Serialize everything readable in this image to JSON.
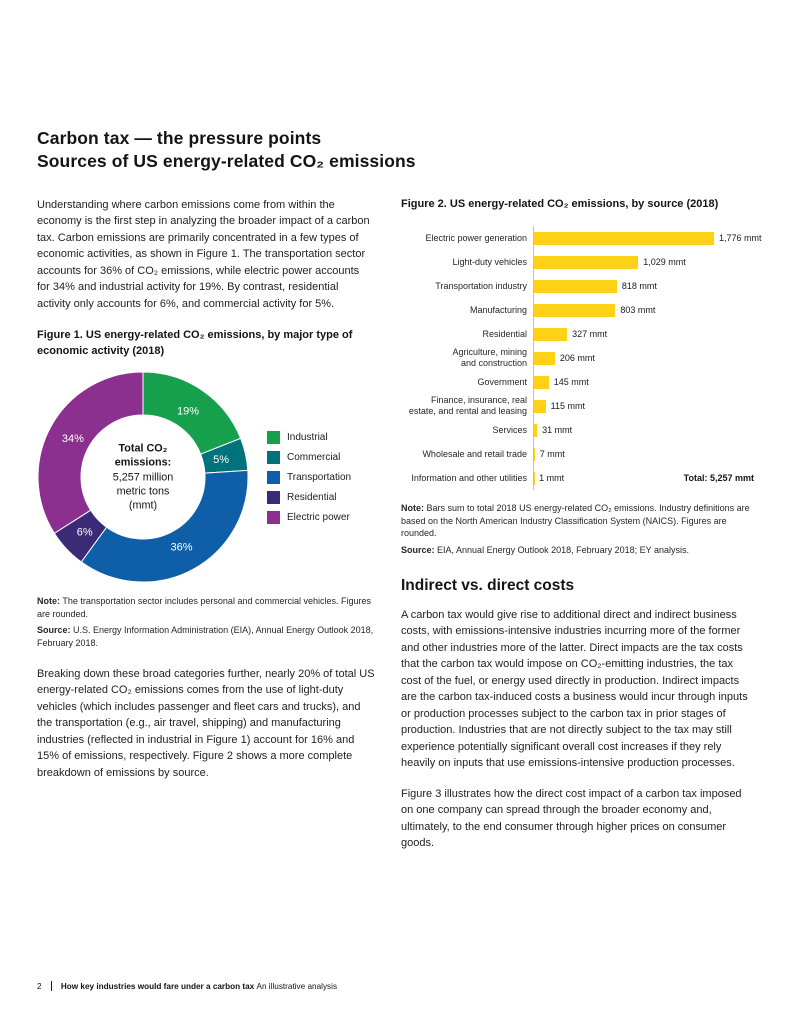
{
  "header": {
    "title_line1": "Carbon tax — the pressure points",
    "title_line2": "Sources of US energy-related CO₂ emissions"
  },
  "left_column": {
    "intro": "Understanding where carbon emissions come from within the economy is the first step in analyzing the broader impact of a carbon tax. Carbon emissions are primarily concentrated in a few types of economic activities, as shown in Figure 1. The transportation sector accounts for 36% of CO₂ emissions, while electric power accounts for 34% and industrial activity for 19%. By contrast, residential activity only accounts for 6%, and commercial activity for 5%.",
    "para2": "Breaking down these broad categories further, nearly 20% of total US energy-related CO₂ emissions comes from the use of light-duty vehicles (which includes passenger and fleet cars and trucks), and the transportation (e.g., air travel, shipping) and manufacturing industries (reflected in industrial in Figure 1) account for 16% and 15% of emissions, respectively. Figure 2 shows a more complete breakdown of emissions by source."
  },
  "figure1": {
    "note_label": "Note:",
    "note_text": "The transportation sector includes personal and commercial vehicles. Figures are rounded.",
    "source_label": "Source:",
    "source_text": "U.S. Energy Information Administration (EIA), Annual Energy Outlook 2018, February 2018."
  },
  "figure2": {
    "note_label": "Note:",
    "note_text": "Bars sum to total 2018 US energy-related CO₂ emissions. Industry definitions are based on the North American Industry Classification System (NAICS). Figures are rounded.",
    "source_label": "Source:",
    "source_text": "EIA, Annual Energy Outlook 2018, February 2018; EY analysis.",
    "total_label": "Total: 5,257 mmt"
  },
  "sections": {
    "indirect_heading": "Indirect vs. direct costs",
    "indirect_para1": "A carbon tax would give rise to additional direct and indirect business costs, with emissions-intensive industries incurring more of the former and other industries more of the latter. Direct impacts are the tax costs that the carbon tax would impose on CO₂-emitting industries, the tax cost of the fuel, or energy used directly in production. Indirect impacts are the carbon tax-induced costs a business would incur through inputs or production processes subject to the carbon tax in prior stages of production. Industries that are not directly subject to the tax may still experience potentially significant overall cost increases if they rely heavily on inputs that use emissions-intensive production processes.",
    "indirect_para2": "Figure 3 illustrates how the direct cost impact of a carbon tax imposed on one company can spread through the broader economy and, ultimately, to the end consumer through higher prices on consumer goods."
  },
  "footer": {
    "page_number": "2",
    "report_title": "How key industries would fare under a carbon tax",
    "report_subtitle": "An illustrative analysis"
  },
  "chart_data": [
    {
      "type": "pie",
      "subtype": "donut",
      "title": "Figure 1. US energy-related CO₂ emissions, by major type of economic activity (2018)",
      "labels": [
        "Industrial",
        "Commercial",
        "Transportation",
        "Residential",
        "Electric power"
      ],
      "values": [
        19,
        5,
        36,
        6,
        34
      ],
      "unit": "%",
      "colors": [
        "#16a04d",
        "#00727c",
        "#0f5fa8",
        "#3b2a75",
        "#8c308f"
      ],
      "center_lines": [
        "Total CO₂",
        "emissions:",
        "5,257 million",
        "metric tons",
        "(mmt)"
      ],
      "legend_position": "right",
      "total_mmt": 5257
    },
    {
      "type": "bar",
      "orientation": "horizontal",
      "title": "Figure 2. US energy-related CO₂ emissions, by source (2018)",
      "categories": [
        "Electric power generation",
        "Light-duty vehicles",
        "Transportation industry",
        "Manufacturing",
        "Residential",
        "Agriculture, mining\nand construction",
        "Government",
        "Finance, insurance, real\nestate, and rental and leasing",
        "Services",
        "Wholesale and retail trade",
        "Information and other utilities"
      ],
      "values": [
        1776,
        1029,
        818,
        803,
        327,
        206,
        145,
        115,
        31,
        7,
        1
      ],
      "value_labels": [
        "1,776 mmt",
        "1,029 mmt",
        "818 mmt",
        "803 mmt",
        "327 mmt",
        "206 mmt",
        "145 mmt",
        "115 mmt",
        "31 mmt",
        "7 mmt",
        "1 mmt"
      ],
      "unit": "mmt",
      "bar_color": "#fdd216",
      "xlim": [
        0,
        1850
      ],
      "total": 5257,
      "grid": false
    }
  ]
}
